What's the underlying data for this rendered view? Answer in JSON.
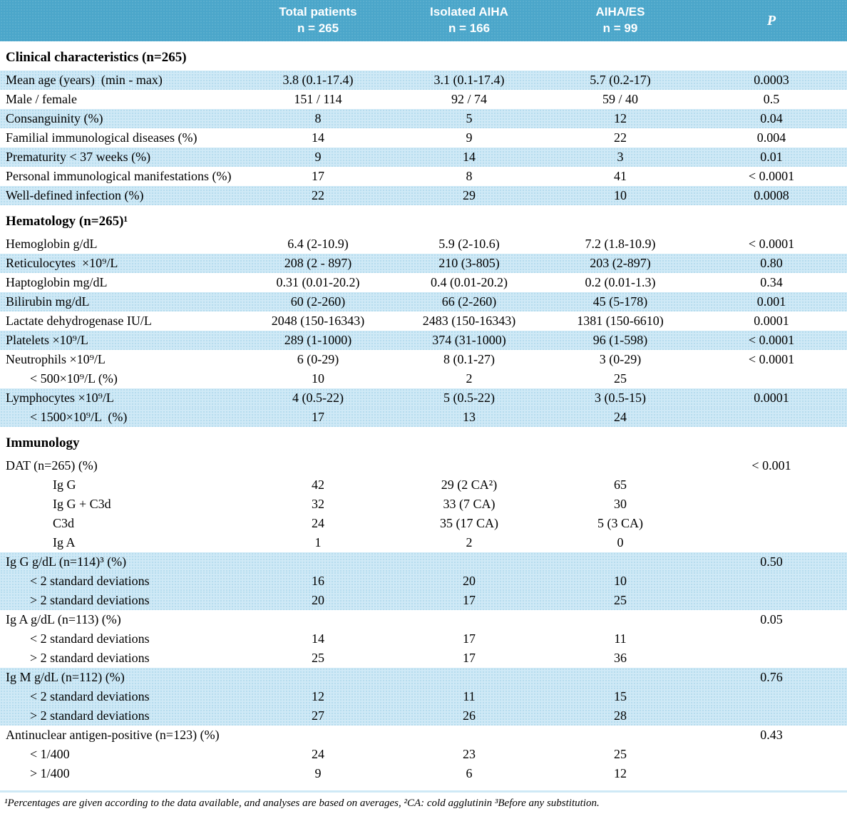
{
  "header": {
    "columns": [
      {
        "line1": "Total patients",
        "line2": "n = 265"
      },
      {
        "line1": "Isolated AIHA",
        "line2": "n = 166"
      },
      {
        "line1": "AIHA/ES",
        "line2": "n = 99"
      },
      {
        "line1": "P",
        "line2": ""
      }
    ]
  },
  "colors": {
    "header_bg": "#4ba6ca",
    "row_shaded": "#cfe9f6",
    "row_dot": "#aed8ec"
  },
  "sections": [
    {
      "title": "Clinical characteristics (n=265)",
      "rows": [
        {
          "label": "Mean age (years)  (min - max)",
          "indent": 0,
          "shaded": true,
          "values": [
            "3.8 (0.1-17.4)",
            "3.1 (0.1-17.4)",
            "5.7 (0.2-17)",
            "0.0003"
          ]
        },
        {
          "label": "Male / female",
          "indent": 0,
          "shaded": false,
          "values": [
            "151 / 114",
            "92 / 74",
            "59 / 40",
            "0.5"
          ]
        },
        {
          "label": "Consanguinity (%)",
          "indent": 0,
          "shaded": true,
          "values": [
            "8",
            "5",
            "12",
            "0.04"
          ]
        },
        {
          "label": "Familial immunological diseases (%)",
          "indent": 0,
          "shaded": false,
          "values": [
            "14",
            "9",
            "22",
            "0.004"
          ]
        },
        {
          "label": "Prematurity < 37 weeks (%)",
          "indent": 0,
          "shaded": true,
          "values": [
            "9",
            "14",
            "3",
            "0.01"
          ]
        },
        {
          "label": "Personal immunological manifestations (%)",
          "indent": 0,
          "shaded": false,
          "values": [
            "17",
            "8",
            "41",
            "< 0.0001"
          ]
        },
        {
          "label": "Well-defined infection (%)",
          "indent": 0,
          "shaded": true,
          "values": [
            "22",
            "29",
            "10",
            "0.0008"
          ]
        }
      ]
    },
    {
      "title": "Hematology (n=265)¹",
      "rows": [
        {
          "label": "Hemoglobin g/dL",
          "indent": 0,
          "shaded": false,
          "values": [
            "6.4 (2-10.9)",
            "5.9 (2-10.6)",
            "7.2 (1.8-10.9)",
            "< 0.0001"
          ]
        },
        {
          "label": "Reticulocytes  ×10⁹/L",
          "indent": 0,
          "shaded": true,
          "values": [
            "208 (2 - 897)",
            "210 (3-805)",
            "203 (2-897)",
            "0.80"
          ]
        },
        {
          "label": "Haptoglobin mg/dL",
          "indent": 0,
          "shaded": false,
          "values": [
            "0.31 (0.01-20.2)",
            "0.4 (0.01-20.2)",
            "0.2 (0.01-1.3)",
            "0.34"
          ]
        },
        {
          "label": "Bilirubin mg/dL",
          "indent": 0,
          "shaded": true,
          "values": [
            "60 (2-260)",
            "66 (2-260)",
            "45 (5-178)",
            "0.001"
          ]
        },
        {
          "label": "Lactate dehydrogenase IU/L",
          "indent": 0,
          "shaded": false,
          "values": [
            "2048 (150-16343)",
            "2483 (150-16343)",
            "1381 (150-6610)",
            "0.0001"
          ]
        },
        {
          "label": "Platelets ×10⁹/L",
          "indent": 0,
          "shaded": true,
          "values": [
            "289 (1-1000)",
            "374 (31-1000)",
            "96 (1-598)",
            "< 0.0001"
          ]
        },
        {
          "label": "Neutrophils ×10⁹/L",
          "indent": 0,
          "shaded": false,
          "values": [
            "6 (0-29)",
            "8 (0.1-27)",
            "3 (0-29)",
            "< 0.0001"
          ]
        },
        {
          "label": "< 500×10⁹/L (%)",
          "indent": 1,
          "shaded": false,
          "values": [
            "10",
            "2",
            "25",
            ""
          ]
        },
        {
          "label": "Lymphocytes ×10⁹/L",
          "indent": 0,
          "shaded": true,
          "values": [
            "4 (0.5-22)",
            "5 (0.5-22)",
            "3 (0.5-15)",
            "0.0001"
          ]
        },
        {
          "label": "< 1500×10⁹/L  (%)",
          "indent": 1,
          "shaded": true,
          "values": [
            "17",
            "13",
            "24",
            ""
          ]
        }
      ]
    },
    {
      "title": "Immunology",
      "rows": [
        {
          "label": "DAT (n=265) (%)",
          "indent": 0,
          "shaded": false,
          "values": [
            "",
            "",
            "",
            "< 0.001"
          ]
        },
        {
          "label": "Ig G",
          "indent": 2,
          "shaded": false,
          "values": [
            "42",
            "29 (2 CA²)",
            "65",
            ""
          ]
        },
        {
          "label": "Ig G + C3d",
          "indent": 2,
          "shaded": false,
          "values": [
            "32",
            "33 (7 CA)",
            "30",
            ""
          ]
        },
        {
          "label": "C3d",
          "indent": 2,
          "shaded": false,
          "values": [
            "24",
            "35 (17 CA)",
            "5 (3 CA)",
            ""
          ]
        },
        {
          "label": "Ig A",
          "indent": 2,
          "shaded": false,
          "values": [
            "1",
            "2",
            "0",
            ""
          ]
        },
        {
          "label": "Ig G g/dL (n=114)³ (%)",
          "indent": 0,
          "shaded": true,
          "values": [
            "",
            "",
            "",
            "0.50"
          ]
        },
        {
          "label": "< 2 standard deviations",
          "indent": 1,
          "shaded": true,
          "values": [
            "16",
            "20",
            "10",
            ""
          ]
        },
        {
          "label": "> 2 standard deviations",
          "indent": 1,
          "shaded": true,
          "values": [
            "20",
            "17",
            "25",
            ""
          ]
        },
        {
          "label": "Ig A g/dL (n=113) (%)",
          "indent": 0,
          "shaded": false,
          "values": [
            "",
            "",
            "",
            "0.05"
          ]
        },
        {
          "label": "< 2 standard deviations",
          "indent": 1,
          "shaded": false,
          "values": [
            "14",
            "17",
            "11",
            ""
          ]
        },
        {
          "label": "> 2 standard deviations",
          "indent": 1,
          "shaded": false,
          "values": [
            "25",
            "17",
            "36",
            ""
          ]
        },
        {
          "label": "Ig M g/dL (n=112) (%)",
          "indent": 0,
          "shaded": true,
          "values": [
            "",
            "",
            "",
            "0.76"
          ]
        },
        {
          "label": "< 2 standard deviations",
          "indent": 1,
          "shaded": true,
          "values": [
            "12",
            "11",
            "15",
            ""
          ]
        },
        {
          "label": "> 2 standard deviations",
          "indent": 1,
          "shaded": true,
          "values": [
            "27",
            "26",
            "28",
            ""
          ]
        },
        {
          "label": "Antinuclear antigen-positive (n=123) (%)",
          "indent": 0,
          "shaded": false,
          "values": [
            "",
            "",
            "",
            "0.43"
          ]
        },
        {
          "label": "< 1/400",
          "indent": 1,
          "shaded": false,
          "values": [
            "24",
            "23",
            "25",
            ""
          ]
        },
        {
          "label": "> 1/400",
          "indent": 1,
          "shaded": false,
          "values": [
            "9",
            "6",
            "12",
            ""
          ]
        }
      ]
    }
  ],
  "footnote": "¹Percentages are given according to the data available, and analyses are based on averages, ²CA: cold agglutinin  ³Before any substitution."
}
